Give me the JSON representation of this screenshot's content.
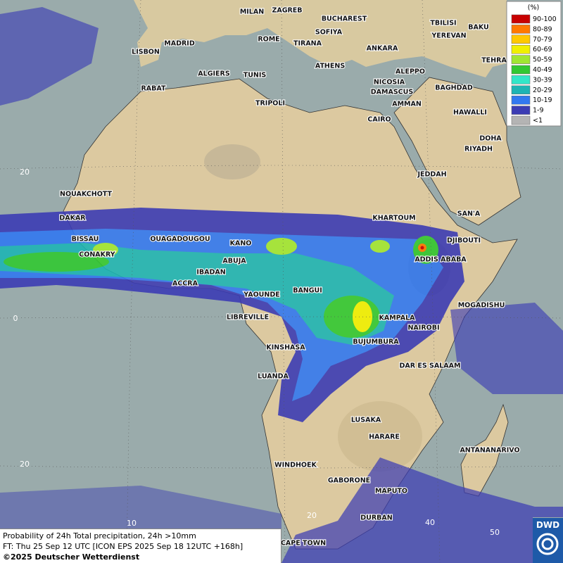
{
  "map": {
    "cities": [
      "MILAN",
      "ZAGREB",
      "BUCHAREST",
      "TBILISI",
      "BAKU",
      "SOFIYA",
      "YEREVAN",
      "LISBON",
      "MADRID",
      "ROME",
      "TIRANA",
      "ANKARA",
      "TEHRA",
      "ATHENS",
      "ALGIERS",
      "TUNIS",
      "ALEPPO",
      "RABAT",
      "NICOSIA",
      "BAGHDAD",
      "DAMASCUS",
      "TRIPOLI",
      "AMMAN",
      "HAWALLI",
      "CAIRO",
      "DOHA",
      "RIYADH",
      "JEDDAH",
      "NOUAKCHOTT",
      "SAN'A",
      "DAKAR",
      "KHARTOUM",
      "BISSAU",
      "OUAGADOUGOU",
      "DJIBOUTI",
      "KANO",
      "CONAKRY",
      "ABUJA",
      "ADDIS ABABA",
      "IBADAN",
      "ACCRA",
      "BANGUI",
      "YAOUNDE",
      "MOGADISHU",
      "LIBREVILLE",
      "KAMPALA",
      "NAIROBI",
      "BUJUMBURA",
      "KINSHASA",
      "DAR ES SALAAM",
      "LUANDA",
      "LUSAKA",
      "HARARE",
      "ANTANANARIVO",
      "WINDHOEK",
      "GABORONE",
      "MAPUTO",
      "DURBAN",
      "CAPE TOWN"
    ],
    "grid_labels": [
      "20",
      "0",
      "20",
      "10",
      "20",
      "40",
      "50"
    ]
  },
  "legend": {
    "title": "(%)",
    "items": [
      {
        "label": "90-100",
        "color": "#c80000"
      },
      {
        "label": "80-89",
        "color": "#ff7800"
      },
      {
        "label": "70-79",
        "color": "#ffc800"
      },
      {
        "label": "60-69",
        "color": "#f0f000"
      },
      {
        "label": "50-59",
        "color": "#a0e632"
      },
      {
        "label": "40-49",
        "color": "#32c832"
      },
      {
        "label": "30-39",
        "color": "#32e6c8"
      },
      {
        "label": "20-29",
        "color": "#1eb4b4"
      },
      {
        "label": "10-19",
        "color": "#3278f0"
      },
      {
        "label": "1-9",
        "color": "#3c3cb4"
      },
      {
        "label": "<1",
        "color": "#b4b4b4"
      }
    ]
  },
  "caption": {
    "line1": "Probability of 24h Total precipitation, 24h >10mm",
    "line2": "FT: Thu 25 Sep 12 UTC [ICON EPS 2025 Sep 18 12UTC +168h]",
    "line3": "©2025 Deutscher Wetterdienst"
  },
  "logo": "DWD"
}
